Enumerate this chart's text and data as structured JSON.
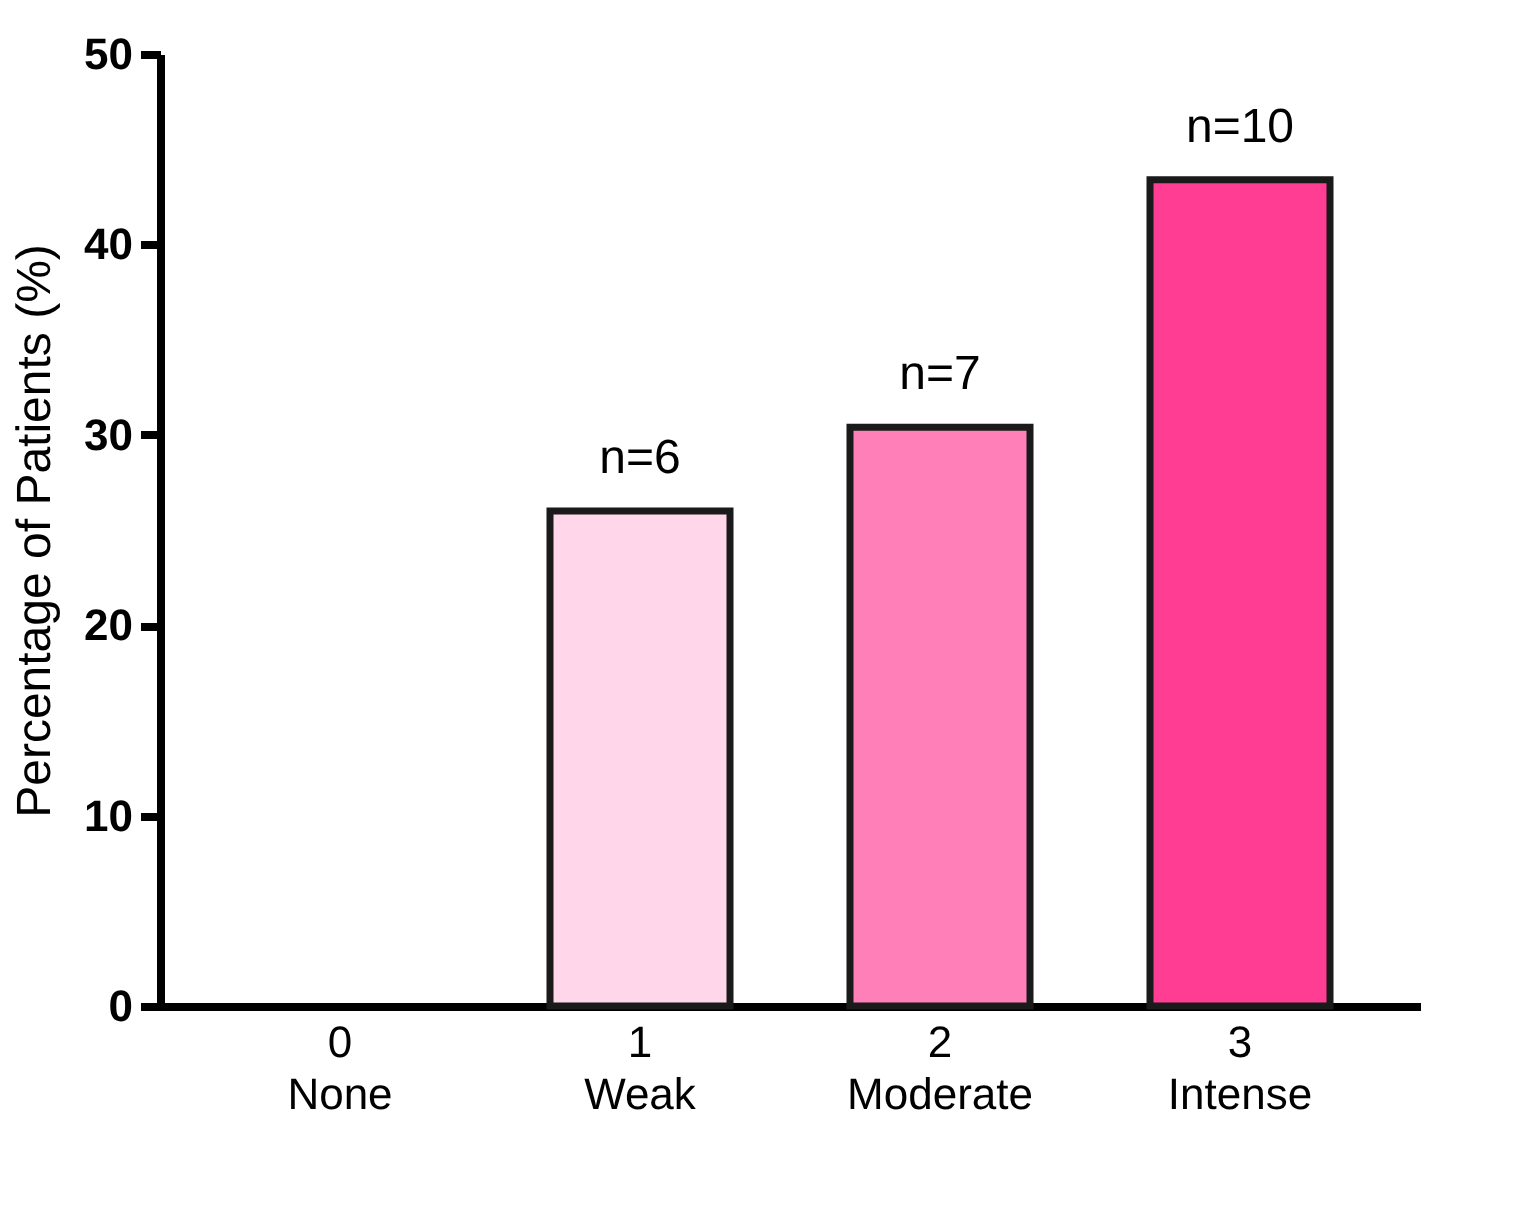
{
  "chart_data": {
    "type": "bar",
    "ylabel": "Percentage of Patients (%)",
    "categories": [
      "0\nNone",
      "1\nWeak",
      "2\nModerate",
      "3\nIntense"
    ],
    "values": [
      0,
      26,
      30.4,
      43.4
    ],
    "colors": [
      null,
      "#ffd6ea",
      "#ff80b8",
      "#ff3d92"
    ],
    "annotations": [
      {
        "text": "n=6",
        "x": "1\nWeak",
        "y": 26
      },
      {
        "text": "n=7",
        "x": "2\nModerate",
        "y": 30.4
      },
      {
        "text": "n=10",
        "x": "3\nIntense",
        "y": 43.4
      }
    ],
    "ylim": [
      0,
      50
    ],
    "yticks": [
      0,
      10,
      20,
      30,
      40,
      50
    ]
  }
}
